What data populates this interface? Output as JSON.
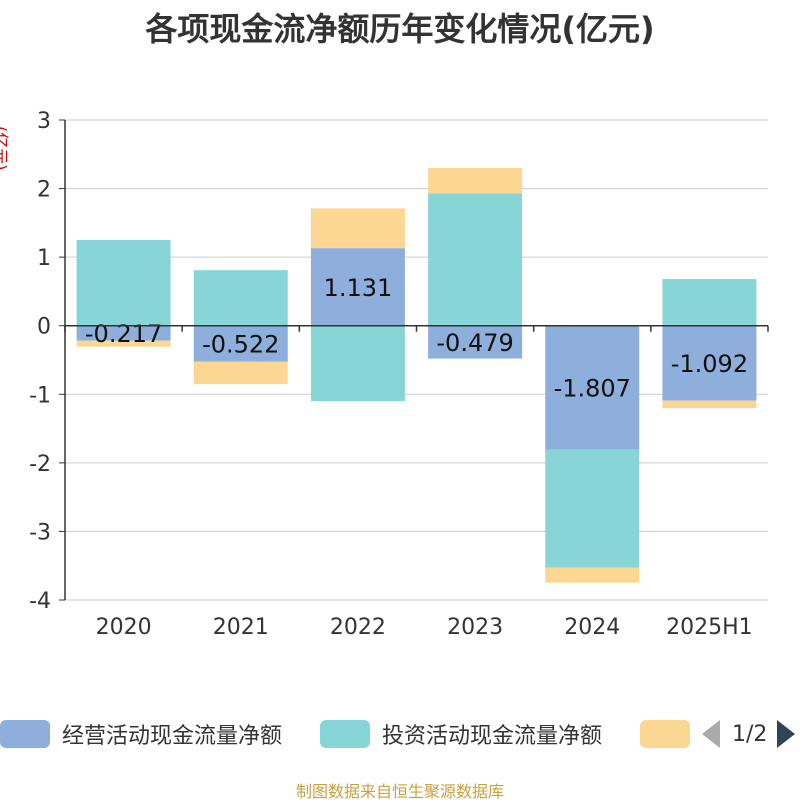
{
  "title": "各项现金流净额历年变化情况(亿元)",
  "y_unit": "(亿元)",
  "source": "制图数据来自恒生聚源数据库",
  "pager": {
    "text": "1/2"
  },
  "colors": {
    "operating": "#8eaedb",
    "investing": "#88d5d8",
    "financing": "#fcd794",
    "grid": "#cccccc",
    "axis": "#333333"
  },
  "chart_data": {
    "type": "bar",
    "stacked": true,
    "categories": [
      "2020",
      "2021",
      "2022",
      "2023",
      "2024",
      "2025H1"
    ],
    "ylim": [
      -4,
      3
    ],
    "yticks": [
      3,
      2,
      1,
      0,
      -1,
      -2,
      -3,
      -4
    ],
    "series": [
      {
        "name": "经营活动现金流量净额",
        "color_key": "operating",
        "values": [
          -0.217,
          -0.522,
          1.131,
          -0.479,
          -1.807,
          -1.092
        ],
        "labels": [
          "-0.217",
          "-0.522",
          "1.131",
          "-0.479",
          "-1.807",
          "-1.092"
        ]
      },
      {
        "name": "投资活动现金流量净额",
        "color_key": "investing",
        "values": [
          1.25,
          0.81,
          -1.1,
          1.93,
          -1.72,
          0.68
        ]
      },
      {
        "name": "",
        "color_key": "financing",
        "values": [
          -0.09,
          -0.33,
          0.58,
          0.37,
          -0.22,
          -0.11
        ]
      }
    ],
    "legend": {
      "position": "bottom"
    },
    "grid": true
  }
}
